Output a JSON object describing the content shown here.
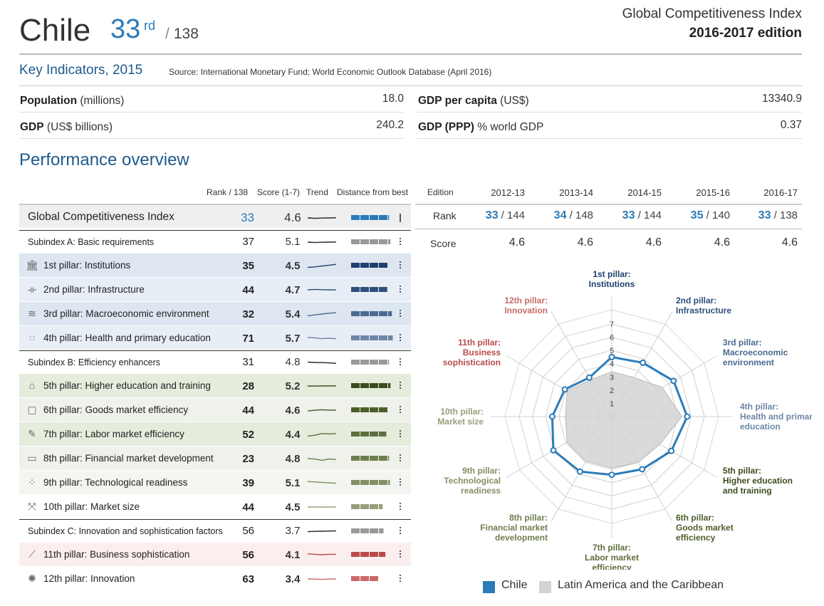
{
  "header": {
    "country": "Chile",
    "rank": "33",
    "rank_suffix": "rd",
    "rank_total": "138",
    "report_title": "Global Competitiveness Index",
    "edition": "2016-2017 edition"
  },
  "key_indicators": {
    "title": "Key Indicators, 2015",
    "source": "Source: International Monetary Fund; World Economic Outlook Database (April 2016)",
    "items": [
      {
        "label": "Population",
        "unit": "(millions)",
        "value": "18.0"
      },
      {
        "label": "GDP",
        "unit": "(US$ billions)",
        "value": "240.2"
      },
      {
        "label": "GDP per capita",
        "unit": "(US$)",
        "value": "13340.9"
      },
      {
        "label": "GDP (PPP)",
        "unit": "% world GDP",
        "value": "0.37"
      }
    ]
  },
  "performance": {
    "title": "Performance overview",
    "headers": {
      "rank": "Rank / 138",
      "score": "Score (1-7)",
      "trend": "Trend",
      "distance": "Distance from best",
      "edition": "Edition"
    },
    "rows": [
      {
        "label": "Global Competitiveness Index",
        "rank": "33",
        "score": "4.6",
        "kind": "gci",
        "icon": "",
        "color": "#2b7bb9",
        "dist": 0.82,
        "trend": [
          0.5,
          0.45,
          0.48,
          0.5,
          0.52
        ]
      },
      {
        "label": "Subindex A: Basic requirements",
        "rank": "37",
        "score": "5.1",
        "kind": "sub",
        "icon": "",
        "color": "#999999",
        "dist": 0.85,
        "trend": [
          0.5,
          0.45,
          0.48,
          0.5,
          0.52
        ]
      },
      {
        "label": "1st pillar: Institutions",
        "rank": "35",
        "score": "4.5",
        "kind": "pillar",
        "icon": "institution-icon",
        "color": "#1f3f6e",
        "dist": 0.8,
        "trend": [
          0.3,
          0.35,
          0.45,
          0.55,
          0.65
        ]
      },
      {
        "label": "2nd pillar: Infrastructure",
        "rank": "44",
        "score": "4.7",
        "kind": "pillar",
        "icon": "bridge-icon",
        "color": "#2e4f7a",
        "dist": 0.78,
        "trend": [
          0.5,
          0.55,
          0.52,
          0.5,
          0.48
        ]
      },
      {
        "label": "3rd pillar: Macroeconomic environment",
        "rank": "32",
        "score": "5.4",
        "kind": "pillar",
        "icon": "coins-icon",
        "color": "#4a6a92",
        "dist": 0.88,
        "trend": [
          0.3,
          0.4,
          0.5,
          0.6,
          0.65
        ]
      },
      {
        "label": "4th pillar: Health and primary education",
        "rank": "71",
        "score": "5.7",
        "kind": "pillar",
        "icon": "apple-icon",
        "color": "#6d86a6",
        "dist": 0.9,
        "trend": [
          0.6,
          0.55,
          0.45,
          0.5,
          0.45
        ]
      },
      {
        "label": "Subindex B: Efficiency enhancers",
        "rank": "31",
        "score": "4.8",
        "kind": "sub",
        "icon": "",
        "color": "#999999",
        "dist": 0.82,
        "trend": [
          0.55,
          0.5,
          0.48,
          0.45,
          0.4
        ]
      },
      {
        "label": "5th pillar: Higher education and training",
        "rank": "28",
        "score": "5.2",
        "kind": "pillar",
        "icon": "graduation-cap-icon",
        "color": "#3b4d1f",
        "dist": 0.85,
        "trend": [
          0.5,
          0.48,
          0.5,
          0.52,
          0.5
        ]
      },
      {
        "label": "6th pillar: Goods market efficiency",
        "rank": "44",
        "score": "4.6",
        "kind": "pillar",
        "icon": "box-icon",
        "color": "#4d5e2c",
        "dist": 0.8,
        "trend": [
          0.4,
          0.5,
          0.55,
          0.5,
          0.52
        ]
      },
      {
        "label": "7th pillar: Labor market efficiency",
        "rank": "52",
        "score": "4.4",
        "kind": "pillar",
        "icon": "tools-icon",
        "color": "#5f6e3e",
        "dist": 0.76,
        "trend": [
          0.3,
          0.4,
          0.6,
          0.55,
          0.6
        ]
      },
      {
        "label": "8th pillar: Financial market development",
        "rank": "23",
        "score": "4.8",
        "kind": "pillar",
        "icon": "wallet-icon",
        "color": "#6f7e50",
        "dist": 0.82,
        "trend": [
          0.5,
          0.45,
          0.3,
          0.45,
          0.4
        ]
      },
      {
        "label": "9th pillar: Technological readiness",
        "rank": "39",
        "score": "5.1",
        "kind": "pillar",
        "icon": "network-icon",
        "color": "#828f64",
        "dist": 0.84,
        "trend": [
          0.65,
          0.6,
          0.55,
          0.5,
          0.45
        ]
      },
      {
        "label": "10th pillar: Market size",
        "rank": "44",
        "score": "4.5",
        "kind": "pillar",
        "icon": "expand-icon",
        "color": "#959f7a",
        "dist": 0.68,
        "trend": [
          0.5,
          0.5,
          0.48,
          0.5,
          0.5
        ]
      },
      {
        "label": "Subindex C: Innovation and sophistication factors",
        "rank": "56",
        "score": "3.7",
        "kind": "sub",
        "icon": "",
        "color": "#999999",
        "dist": 0.7,
        "trend": [
          0.45,
          0.48,
          0.5,
          0.52,
          0.55
        ]
      },
      {
        "label": "11th pillar: Business sophistication",
        "rank": "56",
        "score": "4.1",
        "kind": "pillar",
        "icon": "chart-line-icon",
        "color": "#b94a4a",
        "dist": 0.74,
        "trend": [
          0.6,
          0.55,
          0.5,
          0.55,
          0.55
        ]
      },
      {
        "label": "12th pillar: Innovation",
        "rank": "63",
        "score": "3.4",
        "kind": "pillar",
        "icon": "lightbulb-icon",
        "color": "#c96a6a",
        "dist": 0.6,
        "trend": [
          0.5,
          0.48,
          0.45,
          0.48,
          0.5
        ]
      }
    ]
  },
  "editions": {
    "row_labels": {
      "rank": "Rank",
      "score": "Score"
    },
    "items": [
      {
        "edition": "2012-13",
        "rank": "33",
        "of": "/ 144",
        "score": "4.6"
      },
      {
        "edition": "2013-14",
        "rank": "34",
        "of": "/ 148",
        "score": "4.6"
      },
      {
        "edition": "2014-15",
        "rank": "33",
        "of": "/ 144",
        "score": "4.6"
      },
      {
        "edition": "2015-16",
        "rank": "35",
        "of": "/ 140",
        "score": "4.6"
      },
      {
        "edition": "2016-17",
        "rank": "33",
        "of": "/ 138",
        "score": "4.6"
      }
    ]
  },
  "chart_data": {
    "type": "radar",
    "title": "",
    "scale": [
      1,
      7
    ],
    "ticks": [
      "1",
      "2",
      "3",
      "4",
      "5",
      "6",
      "7"
    ],
    "axes": [
      {
        "label": [
          "1st pillar:",
          "Institutions"
        ],
        "color": "#1f3f6e"
      },
      {
        "label": [
          "2nd pillar:",
          "Infrastructure"
        ],
        "color": "#2e4f7a"
      },
      {
        "label": [
          "3rd pillar:",
          "Macroeconomic",
          "environment"
        ],
        "color": "#4a6a92"
      },
      {
        "label": [
          "4th pillar:",
          "Health and primary",
          "education"
        ],
        "color": "#6d86a6"
      },
      {
        "label": [
          "5th pillar:",
          "Higher education",
          "and training"
        ],
        "color": "#3b4d1f"
      },
      {
        "label": [
          "6th pillar:",
          "Goods market",
          "efficiency"
        ],
        "color": "#4d5e2c"
      },
      {
        "label": [
          "7th pillar:",
          "Labor market",
          "efficiency"
        ],
        "color": "#5f6e3e"
      },
      {
        "label": [
          "8th pillar:",
          "Financial market",
          "development"
        ],
        "color": "#6f7e50"
      },
      {
        "label": [
          "9th pillar:",
          "Technological",
          "readiness"
        ],
        "color": "#828f64"
      },
      {
        "label": [
          "10th pillar:",
          "Market size"
        ],
        "color": "#959f7a"
      },
      {
        "label": [
          "11th pillar:",
          "Business",
          "sophistication"
        ],
        "color": "#b94a4a"
      },
      {
        "label": [
          "12th pillar:",
          "Innovation"
        ],
        "color": "#c96a6a"
      }
    ],
    "series": [
      {
        "name": "Chile",
        "color": "#2b7bb9",
        "values": [
          4.5,
          4.7,
          5.4,
          5.7,
          5.2,
          4.6,
          4.4,
          4.8,
          5.1,
          4.5,
          4.1,
          3.4
        ]
      },
      {
        "name": "Latin America and the Caribbean",
        "color": "#d4d4d4",
        "values": [
          3.4,
          3.4,
          4.4,
          5.3,
          4.2,
          4.0,
          3.9,
          3.9,
          3.9,
          3.5,
          3.9,
          3.2
        ]
      }
    ]
  }
}
